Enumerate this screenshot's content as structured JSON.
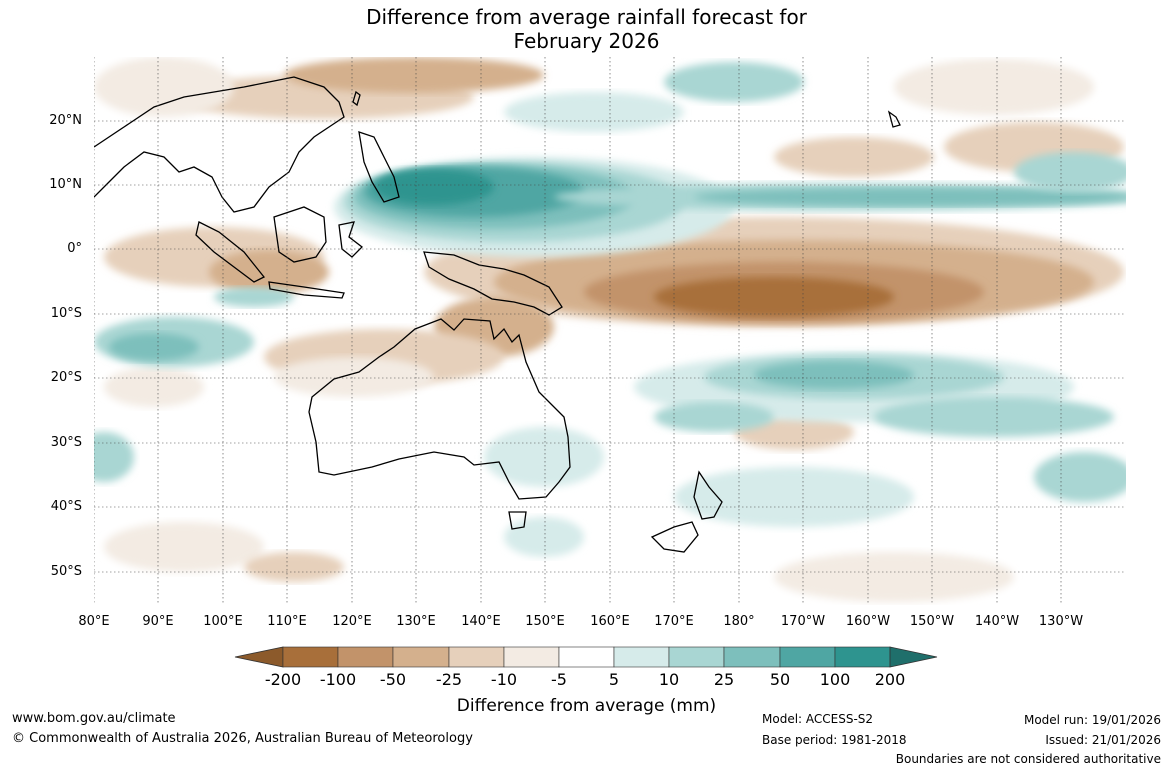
{
  "header": {
    "title_line1": "Difference from average rainfall forecast for",
    "title_line2": "February 2026"
  },
  "map": {
    "lat_labels": [
      "20°N",
      "10°N",
      "0°",
      "10°S",
      "20°S",
      "30°S",
      "40°S",
      "50°S"
    ],
    "lon_labels": [
      "80°E",
      "90°E",
      "100°E",
      "110°E",
      "120°E",
      "130°E",
      "140°E",
      "150°E",
      "160°E",
      "170°E",
      "180°",
      "170°W",
      "160°W",
      "150°W",
      "140°W",
      "130°W"
    ],
    "colors": {
      "dry_extreme": "#8c5a2b",
      "dry_200": "#a86f3a",
      "dry_100": "#c2936a",
      "dry_50": "#d4b08d",
      "dry_25": "#e6d0bb",
      "dry_10": "#f3ebe3",
      "neutral": "#ffffff",
      "wet_10": "#d6ebea",
      "wet_25": "#a9d6d3",
      "wet_50": "#7dbfbc",
      "wet_100": "#4fa6a3",
      "wet_200": "#2e948f",
      "wet_extreme": "#1f6f6b"
    }
  },
  "colorbar": {
    "labels": [
      "-200",
      "-100",
      "-50",
      "-25",
      "-10",
      "-5",
      "5",
      "10",
      "25",
      "50",
      "100",
      "200"
    ],
    "title": "Difference from average (mm)"
  },
  "footer": {
    "website": "www.bom.gov.au/climate",
    "copyright": "© Commonwealth of Australia 2026, Australian Bureau of Meteorology",
    "model": "Model: ACCESS-S2",
    "base_period": "Base period: 1981-2018",
    "model_run": "Model run: 19/01/2026",
    "issued": "Issued: 21/01/2026",
    "disclaimer": "Boundaries are not considered authoritative"
  }
}
